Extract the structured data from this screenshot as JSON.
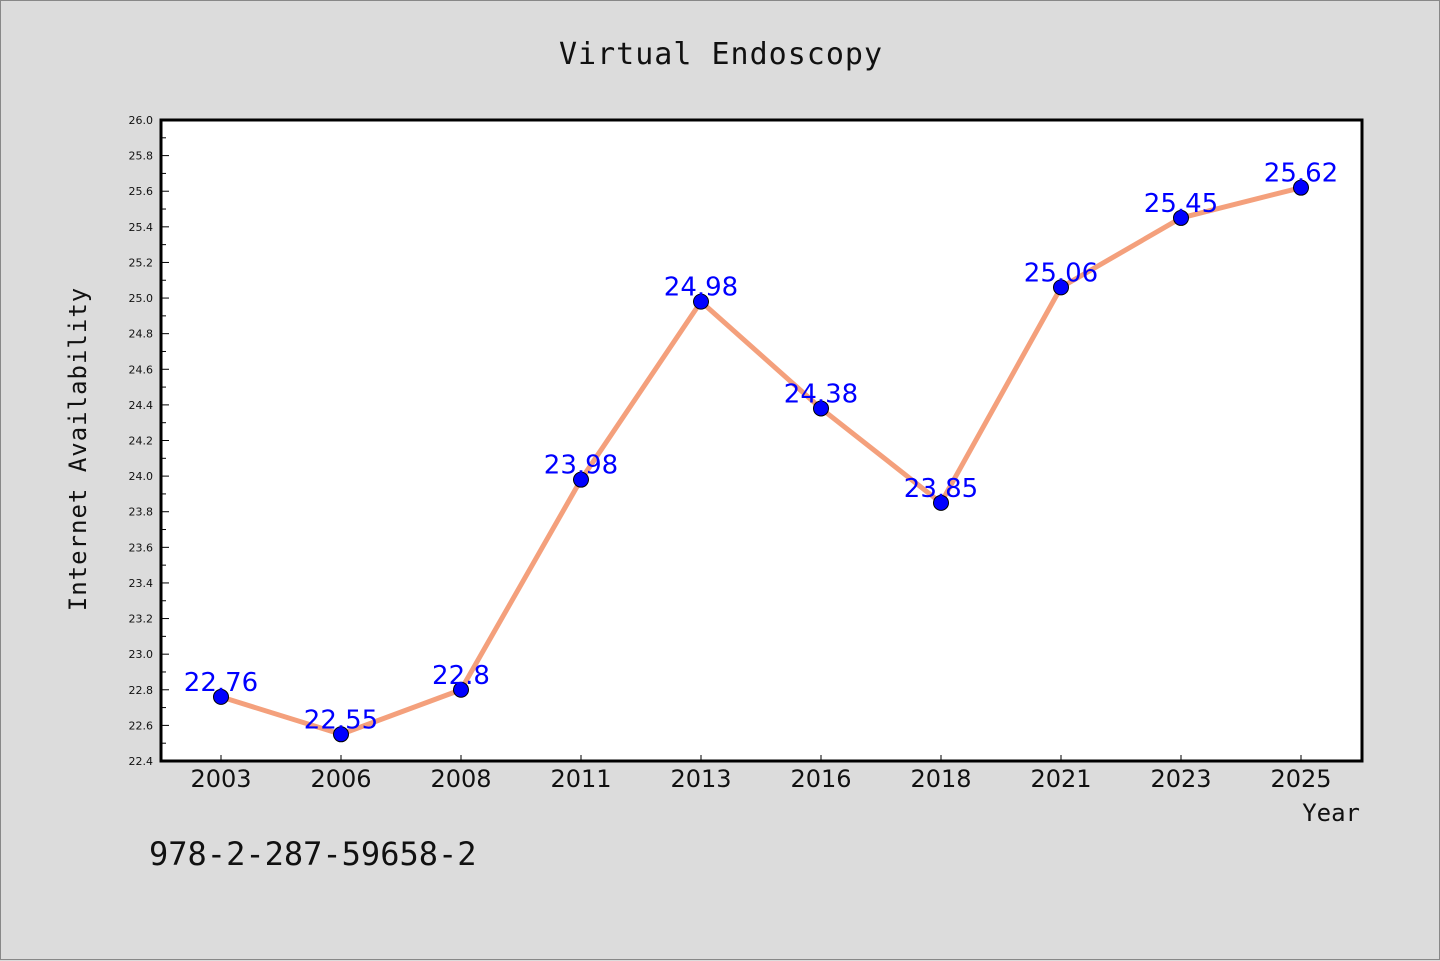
{
  "chart_data": {
    "type": "line",
    "title": "Virtual Endoscopy",
    "xlabel": "Year",
    "ylabel": "Internet Availability",
    "categories": [
      "2003",
      "2006",
      "2008",
      "2011",
      "2013",
      "2016",
      "2018",
      "2021",
      "2023",
      "2025"
    ],
    "series": [
      {
        "values": [
          22.76,
          22.55,
          22.8,
          23.98,
          24.98,
          24.38,
          23.85,
          25.06,
          25.45,
          25.62
        ],
        "data_labels": [
          "22.76",
          "22.55",
          "22.8",
          "23.98",
          "24.98",
          "24.38",
          "23.85",
          "25.06",
          "25.45",
          "25.62"
        ],
        "line_color": "#f4a07c",
        "marker_color": "#0000ff"
      }
    ],
    "ylim": [
      22.4,
      26.0
    ],
    "y_ticks": [
      "22.4",
      "22.6",
      "22.8",
      "23.0",
      "23.2",
      "23.4",
      "23.6",
      "23.8",
      "24.0",
      "24.2",
      "24.4",
      "24.6",
      "24.8",
      "25.0",
      "25.2",
      "25.4",
      "25.6",
      "25.8",
      "26.0"
    ],
    "grid": false,
    "legend": "none"
  },
  "footer": {
    "isbn": "978-2-287-59658-2"
  }
}
